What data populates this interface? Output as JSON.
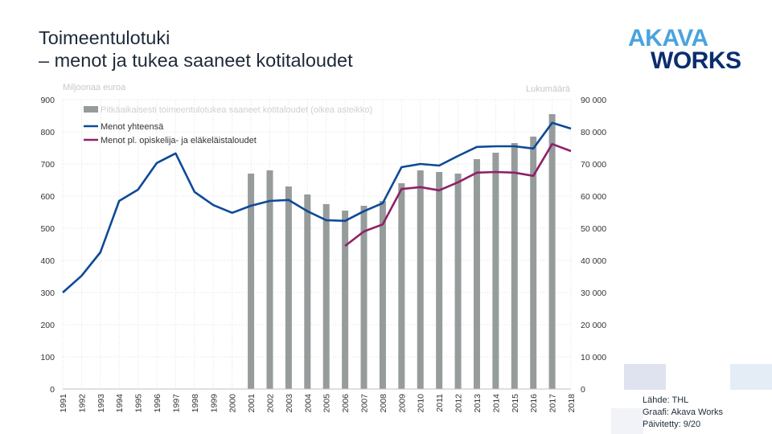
{
  "title_lines": [
    "Toimeentulotuki",
    "– menot ja tukea saaneet kotitaloudet"
  ],
  "logo": {
    "line1": "AKAVA",
    "line2": "WORKS"
  },
  "source_lines": [
    "Lähde: THL",
    "Graafi: Akava Works",
    "Päivitetty: 9/20"
  ],
  "colors": {
    "bars": "#969b9b",
    "total": "#0d4a96",
    "excl": "#8e2167",
    "grid": "#e2e2e2"
  },
  "chart_data": {
    "type": "bar+line",
    "y_left_label": "Miljoonaa euroa",
    "y_right_label": "Lukumäärä",
    "y_left_range": [
      0,
      900
    ],
    "y_right_range": [
      0,
      90000
    ],
    "y_left_ticks": [
      "0",
      "100",
      "200",
      "300",
      "400",
      "500",
      "600",
      "700",
      "800",
      "900"
    ],
    "y_right_ticks": [
      "0",
      "10 000",
      "20 000",
      "30 000",
      "40 000",
      "50 000",
      "60 000",
      "70 000",
      "80 000",
      "90 000"
    ],
    "categories": [
      "1991",
      "1992",
      "1993",
      "1994",
      "1995",
      "1996",
      "1997",
      "1998",
      "1999",
      "2000",
      "2001",
      "2002",
      "2003",
      "2004",
      "2005",
      "2006",
      "2007",
      "2008",
      "2009",
      "2010",
      "2011",
      "2012",
      "2013",
      "2014",
      "2015",
      "2016",
      "2017",
      "2018"
    ],
    "grid": "dotted",
    "legend_position": "top-left",
    "series": [
      {
        "name": "Pitkäaikaisesti toimeentulotukea saaneet kotitaloudet (oikea asteikko)",
        "kind": "bar",
        "axis": "right",
        "values": [
          null,
          null,
          null,
          null,
          null,
          null,
          null,
          null,
          null,
          null,
          67000,
          68000,
          63000,
          60500,
          57500,
          55500,
          57000,
          58500,
          64000,
          68000,
          67500,
          67000,
          71500,
          73500,
          76500,
          78500,
          85500,
          null
        ]
      },
      {
        "name": "Menot yhteensä",
        "kind": "line",
        "axis": "left",
        "values": [
          300,
          352,
          425,
          585,
          620,
          703,
          733,
          613,
          572,
          548,
          570,
          585,
          588,
          553,
          525,
          523,
          553,
          578,
          690,
          700,
          695,
          725,
          753,
          755,
          755,
          748,
          828,
          810
        ]
      },
      {
        "name": "Menot pl. opiskelija- ja eläkeläistaloudet",
        "kind": "line",
        "axis": "left",
        "values": [
          null,
          null,
          null,
          null,
          null,
          null,
          null,
          null,
          null,
          null,
          null,
          null,
          null,
          null,
          null,
          445,
          490,
          512,
          622,
          628,
          618,
          643,
          673,
          675,
          673,
          663,
          762,
          740
        ]
      }
    ]
  }
}
